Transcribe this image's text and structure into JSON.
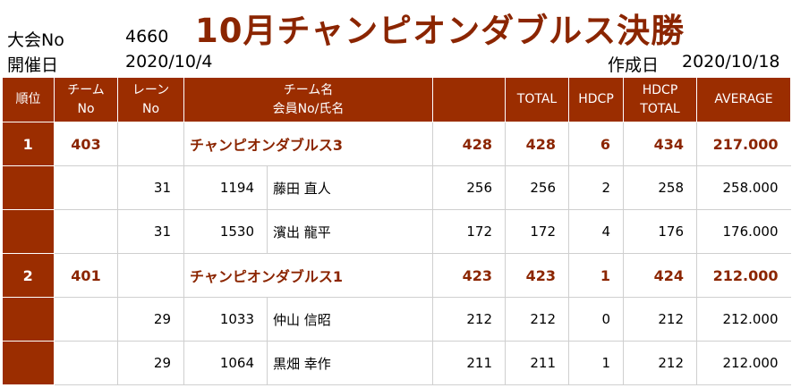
{
  "header": {
    "tournament_no_label": "大会No",
    "tournament_no": "4660",
    "date_label": "開催日",
    "date": "2020/10/4",
    "title": "10月チャンピオンダブルス決勝",
    "created_label": "作成日",
    "created_date": "2020/10/18"
  },
  "columns": {
    "rank": "順位",
    "team_no_1": "チーム",
    "team_no_2": "No",
    "lane_1": "レーン",
    "lane_2": "No",
    "name_1": "チーム名",
    "name_2": "会員No/氏名",
    "blank": "",
    "total": "TOTAL",
    "hdcp": "HDCP",
    "hdcp_total_1": "HDCP",
    "hdcp_total_2": "TOTAL",
    "average": "AVERAGE"
  },
  "rows": [
    {
      "rank": "1",
      "team_no": "403",
      "lane": "",
      "member_no": "",
      "name": "チャンピオンダブルス3",
      "score": "428",
      "total": "428",
      "hdcp": "6",
      "hdcp_total": "434",
      "average": "217.000"
    },
    {
      "rank": "",
      "team_no": "",
      "lane": "31",
      "member_no": "1194",
      "name": "藤田 直人",
      "score": "256",
      "total": "256",
      "hdcp": "2",
      "hdcp_total": "258",
      "average": "258.000"
    },
    {
      "rank": "",
      "team_no": "",
      "lane": "31",
      "member_no": "1530",
      "name": "濱出 龍平",
      "score": "172",
      "total": "172",
      "hdcp": "4",
      "hdcp_total": "176",
      "average": "176.000"
    },
    {
      "rank": "2",
      "team_no": "401",
      "lane": "",
      "member_no": "",
      "name": "チャンピオンダブルス1",
      "score": "423",
      "total": "423",
      "hdcp": "1",
      "hdcp_total": "424",
      "average": "212.000"
    },
    {
      "rank": "",
      "team_no": "",
      "lane": "29",
      "member_no": "1033",
      "name": "仲山 信昭",
      "score": "212",
      "total": "212",
      "hdcp": "0",
      "hdcp_total": "212",
      "average": "212.000"
    },
    {
      "rank": "",
      "team_no": "",
      "lane": "29",
      "member_no": "1064",
      "name": "黒畑 幸作",
      "score": "211",
      "total": "211",
      "hdcp": "1",
      "hdcp_total": "212",
      "average": "212.000"
    }
  ]
}
